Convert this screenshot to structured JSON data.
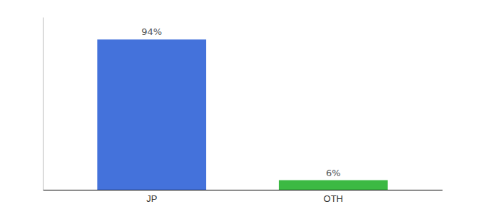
{
  "chart_data": {
    "type": "bar",
    "categories": [
      "JP",
      "OTH"
    ],
    "values": [
      94,
      6
    ],
    "value_labels": [
      "94%",
      "6%"
    ],
    "colors": [
      "#4472DB",
      "#3CB943"
    ],
    "ylim": [
      0,
      108
    ],
    "data_labels": true,
    "tick_labels": "x"
  }
}
